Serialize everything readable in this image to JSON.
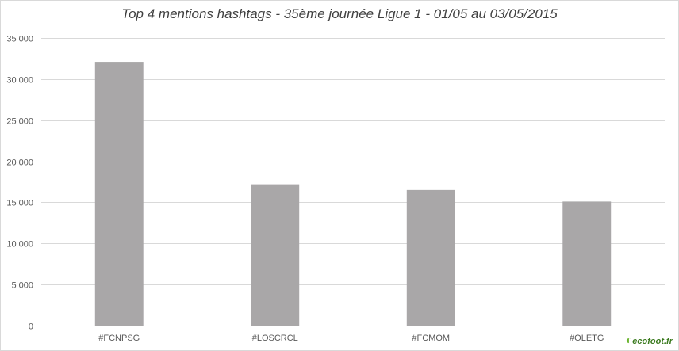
{
  "chart_data": {
    "type": "bar",
    "title": "Top 4 mentions hashtags - 35ème journée Ligue 1 - 01/05 au 03/05/2015",
    "categories": [
      "#FCNPSG",
      "#LOSCRCL",
      "#FCMOM",
      "#OLETG"
    ],
    "values": [
      32100,
      17200,
      16500,
      15100
    ],
    "xlabel": "",
    "ylabel": "",
    "ylim": [
      0,
      35000
    ],
    "yticks": [
      0,
      5000,
      10000,
      15000,
      20000,
      25000,
      30000,
      35000
    ],
    "ytick_labels": [
      "0",
      "5 000",
      "10 000",
      "15 000",
      "20 000",
      "25 000",
      "30 000",
      "35 000"
    ],
    "grid": "horizontal",
    "bar_color": "#a9a7a8",
    "grid_color": "#d9d9d9"
  },
  "watermark": {
    "brand": "ecofoot",
    "suffix": ".fr"
  }
}
